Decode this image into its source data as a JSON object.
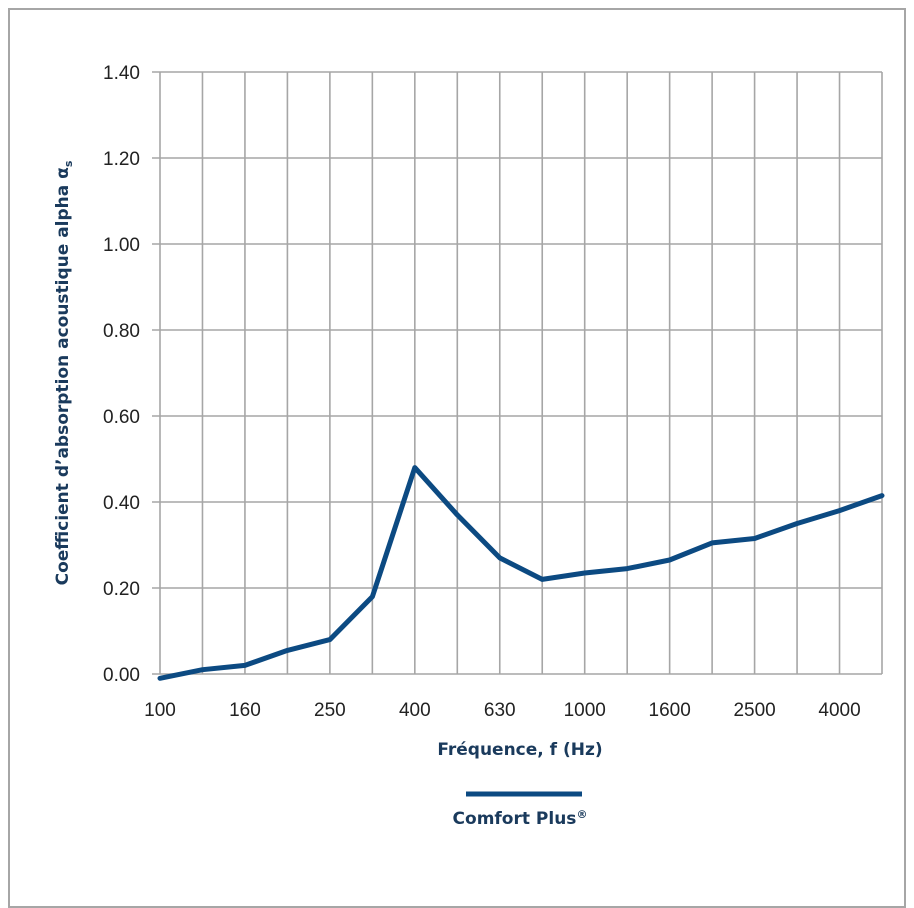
{
  "chart_data": {
    "type": "line",
    "x": [
      "100",
      "125",
      "160",
      "200",
      "250",
      "315",
      "400",
      "500",
      "630",
      "800",
      "1000",
      "1250",
      "1600",
      "2000",
      "2500",
      "3150",
      "4000",
      "5000"
    ],
    "x_tick_labels": [
      "100",
      "160",
      "250",
      "400",
      "630",
      "1000",
      "1600",
      "2500",
      "4000"
    ],
    "series": [
      {
        "name": "Comfort Plus®",
        "values": [
          -0.01,
          0.01,
          0.02,
          0.055,
          0.08,
          0.18,
          0.48,
          0.37,
          0.27,
          0.22,
          0.235,
          0.245,
          0.265,
          0.305,
          0.315,
          0.35,
          0.38,
          0.415
        ],
        "color": "#0c4a82"
      }
    ],
    "y_ticks": [
      "0.00",
      "0.20",
      "0.40",
      "0.60",
      "0.80",
      "1.00",
      "1.20",
      "1.40"
    ],
    "ylim": [
      0,
      1.4
    ],
    "xlabel": "Fréquence, f (Hz)",
    "ylabel_main": "Coefficient d’absorption acoustique alpha  α",
    "ylabel_sub": "s",
    "legend_label": "Comfort Plus",
    "legend_mark": "®",
    "legend_position": "bottom-center",
    "grid": true,
    "grid_color": "#a6a6a6",
    "text_color": "#1a3a5c"
  }
}
